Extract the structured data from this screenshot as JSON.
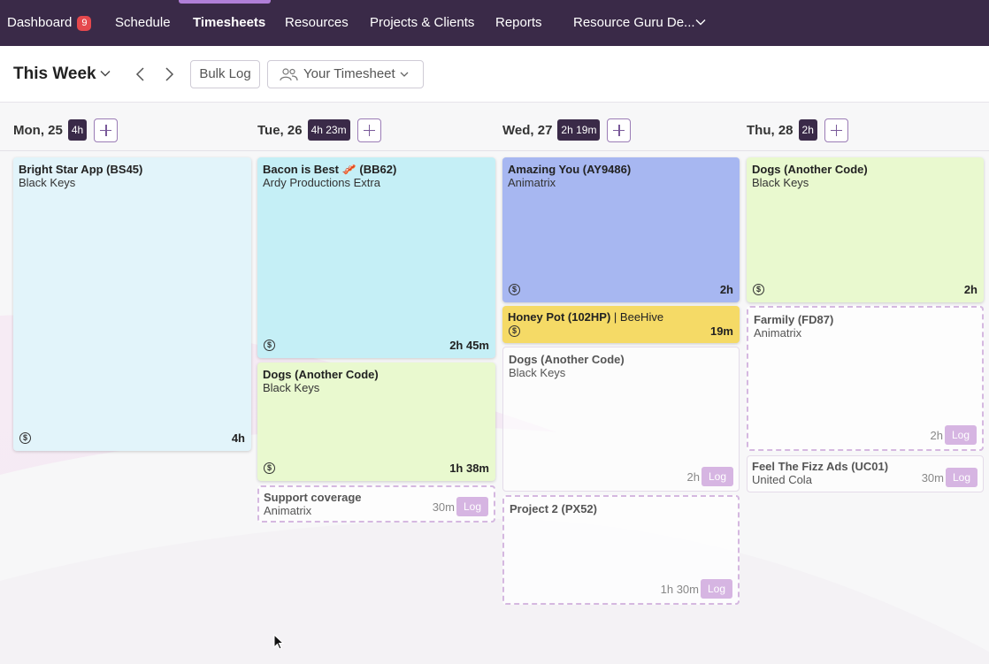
{
  "nav": {
    "items": [
      {
        "label": "Dashboard",
        "badge": "9"
      },
      {
        "label": "Schedule"
      },
      {
        "label": "Timesheets"
      },
      {
        "label": "Resources"
      },
      {
        "label": "Projects & Clients"
      },
      {
        "label": "Reports"
      },
      {
        "label": "Resource Guru De..."
      }
    ],
    "active": "Timesheets"
  },
  "toolbar": {
    "title": "This Week",
    "bulk_log": "Bulk Log",
    "timesheet_select": "Your Timesheet"
  },
  "days": [
    {
      "label": "Mon, 25",
      "total": "4h"
    },
    {
      "label": "Tue, 26",
      "total": "4h 23m"
    },
    {
      "label": "Wed, 27",
      "total": "2h 19m"
    },
    {
      "label": "Thu, 28",
      "total": "2h"
    }
  ],
  "cards": {
    "mon": [
      {
        "title": "Bright Star App (BS45)",
        "client": "Black Keys",
        "hours": "4h",
        "icon": "dollar-icon",
        "color": "#e2f4fa"
      }
    ],
    "tue": [
      {
        "title": "Bacon is Best 🥓 (BB62)",
        "client": "Ardy Productions Extra",
        "hours": "2h 45m",
        "icon": "dollar-icon",
        "color": "#c5eff6"
      },
      {
        "title": "Dogs (Another Code)",
        "client": "Black Keys",
        "hours": "1h 38m",
        "icon": "dollar-icon",
        "color": "#e9f9cf"
      },
      {
        "title": "Support coverage",
        "client": "Animatrix",
        "hours": "30m",
        "log": "Log"
      }
    ],
    "wed": [
      {
        "title": "Amazing You (AY9486)",
        "client": "Animatrix",
        "hours": "2h",
        "icon": "dollar-icon",
        "color": "#a7b7f1"
      },
      {
        "title": "Honey Pot (102HP)",
        "client": "BeeHive",
        "hours": "19m",
        "icon": "dollar-icon",
        "color": "#f5da66"
      },
      {
        "title": "Dogs (Another Code)",
        "client": "Black Keys",
        "hours": "2h",
        "log": "Log"
      },
      {
        "title": "Project 2 (PX52)",
        "client": "",
        "hours": "1h 30m",
        "log": "Log"
      }
    ],
    "thu": [
      {
        "title": "Dogs (Another Code)",
        "client": "Black Keys",
        "hours": "2h",
        "icon": "dollar-icon",
        "color": "#e9f9cf"
      },
      {
        "title": "Farmily (FD87)",
        "client": "Animatrix",
        "hours": "2h",
        "log": "Log"
      },
      {
        "title": "Feel The Fizz Ads (UC01)",
        "client": "United Cola",
        "hours": "30m",
        "log": "Log"
      }
    ]
  },
  "colors": {
    "nav_bg": "#3a2a48",
    "accent": "#b07fd8",
    "badge": "#e5484d",
    "log_button": "#d6b5e2"
  }
}
